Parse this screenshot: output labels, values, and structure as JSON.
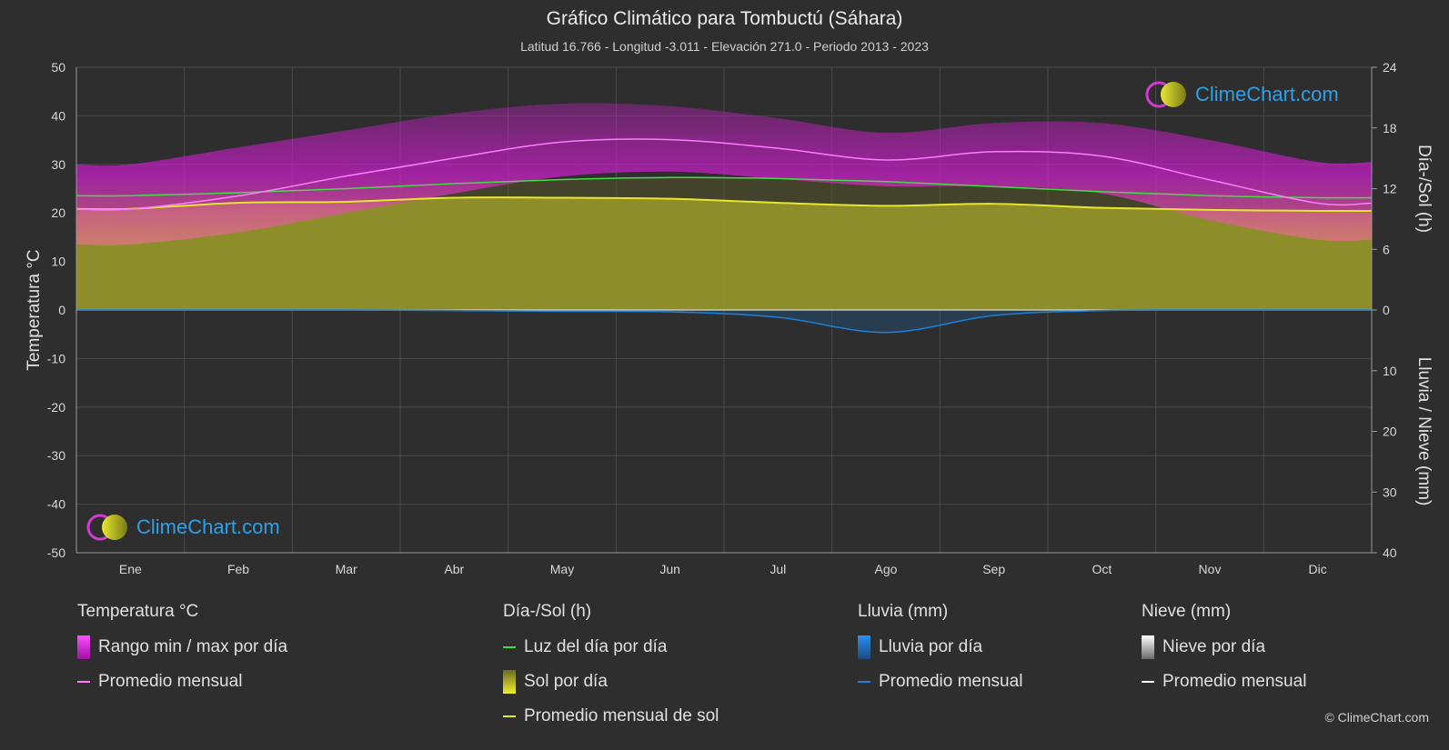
{
  "header": {
    "title": "Gráfico Climático para Tombuctú (Sáhara)",
    "subtitle": "Latitud 16.766 - Longitud -3.011 - Elevación 271.0 - Periodo 2013 - 2023"
  },
  "logo": {
    "text": "ClimeChart.com"
  },
  "copyright": "© ClimeChart.com",
  "colors": {
    "background": "#2e2e2e",
    "temp_range": "#c81ec8",
    "temp_avg": "#ff7bff",
    "daylight": "#44dd44",
    "sunshine_fill": "#9a9a2a",
    "sunshine_avg": "#e6e62e",
    "rain": "#1e7fd6",
    "snow": "#ffffff"
  },
  "chart_data": {
    "type": "line",
    "months": [
      "Ene",
      "Feb",
      "Mar",
      "Abr",
      "May",
      "Jun",
      "Jul",
      "Ago",
      "Sep",
      "Oct",
      "Nov",
      "Dic"
    ],
    "left_axis": {
      "label": "Temperatura °C",
      "range": [
        -50,
        50
      ],
      "ticks": [
        50,
        40,
        30,
        20,
        10,
        0,
        -10,
        -20,
        -30,
        -40,
        -50
      ]
    },
    "right_axis_top": {
      "label": "Día-/Sol (h)",
      "range": [
        0,
        24
      ],
      "ticks": [
        24,
        18,
        12,
        6,
        0
      ]
    },
    "right_axis_bottom": {
      "label": "Lluvia / Nieve (mm)",
      "range": [
        0,
        40
      ],
      "ticks": [
        0,
        10,
        20,
        30,
        40
      ]
    },
    "series": [
      {
        "name": "Promedio mensual",
        "group": "Temperatura °C",
        "unit": "°C",
        "values": [
          20.8,
          23.5,
          27.6,
          31.3,
          34.6,
          35.1,
          33.3,
          30.9,
          32.6,
          31.7,
          26.8,
          22.0
        ]
      },
      {
        "name": "Rango min / max por día",
        "group": "Temperatura °C",
        "unit": "°C",
        "min": [
          13.5,
          16.0,
          20.0,
          24.0,
          27.5,
          28.5,
          27.0,
          25.5,
          25.5,
          24.0,
          18.5,
          14.5
        ],
        "max": [
          30.0,
          33.5,
          37.0,
          40.5,
          42.5,
          42.0,
          39.5,
          36.5,
          38.5,
          38.5,
          35.0,
          30.5
        ]
      },
      {
        "name": "Luz del día por día",
        "group": "Día-/Sol (h)",
        "unit": "h",
        "values": [
          11.3,
          11.6,
          12.0,
          12.5,
          12.9,
          13.1,
          13.0,
          12.7,
          12.2,
          11.7,
          11.3,
          11.1
        ]
      },
      {
        "name": "Promedio mensual de sol",
        "group": "Día-/Sol (h)",
        "unit": "h",
        "values": [
          10.0,
          10.6,
          10.7,
          11.1,
          11.1,
          11.0,
          10.6,
          10.3,
          10.5,
          10.1,
          9.9,
          9.8
        ]
      },
      {
        "name": "Promedio mensual",
        "group": "Lluvia (mm)",
        "unit": "mm",
        "values": [
          0.0,
          0.0,
          0.0,
          0.1,
          0.2,
          0.3,
          1.2,
          3.7,
          0.9,
          0.1,
          0.0,
          0.0
        ]
      },
      {
        "name": "Promedio mensual",
        "group": "Nieve (mm)",
        "unit": "mm",
        "values": [
          0,
          0,
          0,
          0,
          0,
          0,
          0,
          0,
          0,
          0,
          0,
          0
        ]
      }
    ]
  },
  "legend": {
    "temperature": {
      "title": "Temperatura °C",
      "items": [
        "Rango min / max por día",
        "Promedio mensual"
      ]
    },
    "sun": {
      "title": "Día-/Sol (h)",
      "items": [
        "Luz del día por día",
        "Sol por día",
        "Promedio mensual de sol"
      ]
    },
    "rain": {
      "title": "Lluvia (mm)",
      "items": [
        "Lluvia por día",
        "Promedio mensual"
      ]
    },
    "snow": {
      "title": "Nieve (mm)",
      "items": [
        "Nieve por día",
        "Promedio mensual"
      ]
    }
  }
}
